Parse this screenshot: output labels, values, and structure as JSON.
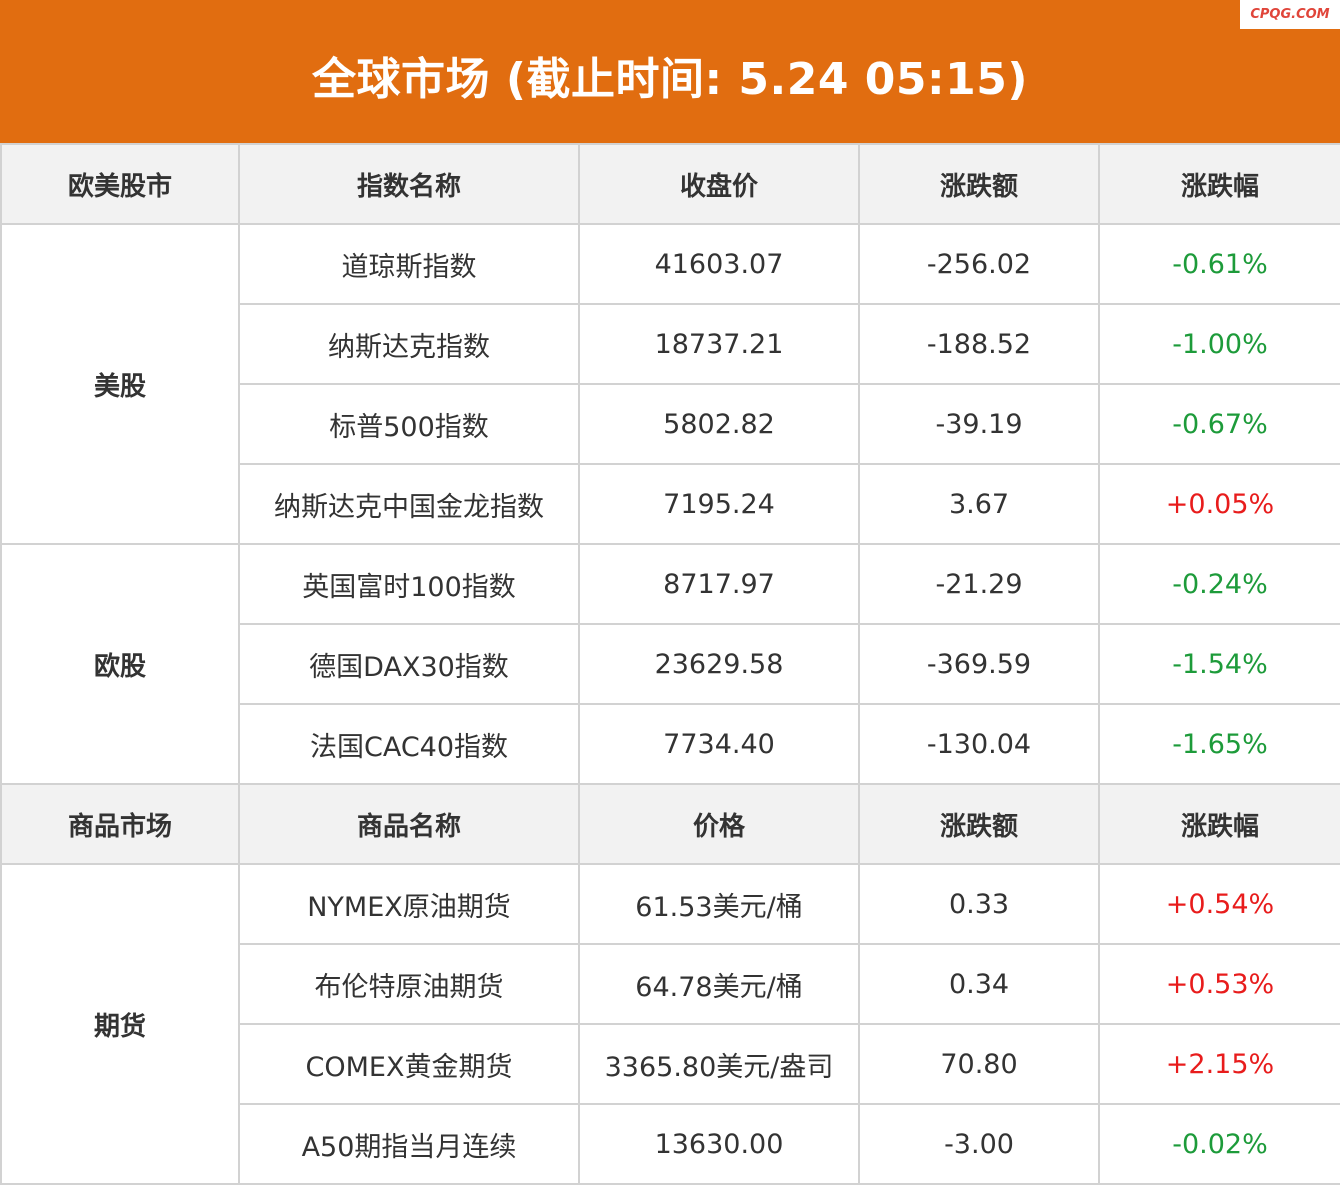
{
  "title": "全球市场 (截止时间: 5.24 05:15)",
  "watermark": "CPQG.COM",
  "colors": {
    "banner": "#e16d10",
    "down": "#1d9b3a",
    "up": "#e81c1c"
  },
  "stocks": {
    "headers": [
      "欧美股市",
      "指数名称",
      "收盘价",
      "涨跌额",
      "涨跌幅"
    ],
    "groups": [
      {
        "name": "美股",
        "rows": [
          {
            "name": "道琼斯指数",
            "close": "41603.07",
            "change": "-256.02",
            "pct": "-0.61%",
            "dir": "down"
          },
          {
            "name": "纳斯达克指数",
            "close": "18737.21",
            "change": "-188.52",
            "pct": "-1.00%",
            "dir": "down"
          },
          {
            "name": "标普500指数",
            "close": "5802.82",
            "change": "-39.19",
            "pct": "-0.67%",
            "dir": "down"
          },
          {
            "name": "纳斯达克中国金龙指数",
            "close": "7195.24",
            "change": "3.67",
            "pct": "+0.05%",
            "dir": "up"
          }
        ]
      },
      {
        "name": "欧股",
        "rows": [
          {
            "name": "英国富时100指数",
            "close": "8717.97",
            "change": "-21.29",
            "pct": "-0.24%",
            "dir": "down"
          },
          {
            "name": "德国DAX30指数",
            "close": "23629.58",
            "change": "-369.59",
            "pct": "-1.54%",
            "dir": "down"
          },
          {
            "name": "法国CAC40指数",
            "close": "7734.40",
            "change": "-130.04",
            "pct": "-1.65%",
            "dir": "down"
          }
        ]
      }
    ]
  },
  "commodities": {
    "headers": [
      "商品市场",
      "商品名称",
      "价格",
      "涨跌额",
      "涨跌幅"
    ],
    "groups": [
      {
        "name": "期货",
        "rows": [
          {
            "name": "NYMEX原油期货",
            "close": "61.53美元/桶",
            "change": "0.33",
            "pct": "+0.54%",
            "dir": "up"
          },
          {
            "name": "布伦特原油期货",
            "close": "64.78美元/桶",
            "change": "0.34",
            "pct": "+0.53%",
            "dir": "up"
          },
          {
            "name": "COMEX黄金期货",
            "close": "3365.80美元/盎司",
            "change": "70.80",
            "pct": "+2.15%",
            "dir": "up"
          },
          {
            "name": "A50期指当月连续",
            "close": "13630.00",
            "change": "-3.00",
            "pct": "-0.02%",
            "dir": "down"
          }
        ]
      }
    ]
  }
}
